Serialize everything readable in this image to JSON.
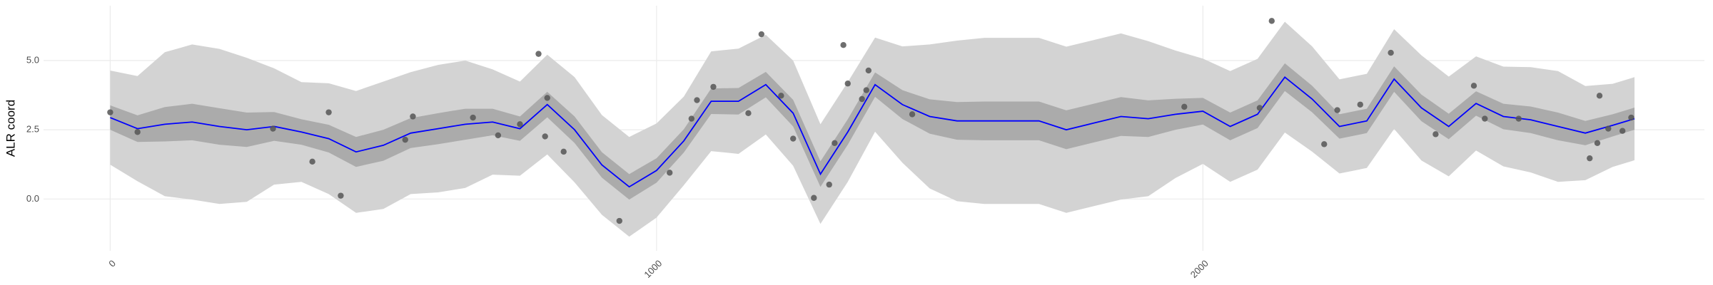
{
  "chart_data": {
    "type": "line",
    "y_label": "ALR coord",
    "xlim": [
      -122,
      2918
    ],
    "ylim": [
      -1.87,
      6.98
    ],
    "xticks": [
      0,
      1000,
      2000
    ],
    "yticks": [
      {
        "value": 0,
        "label": "0.0"
      },
      {
        "value": 2.5,
        "label": "2.5"
      },
      {
        "value": 5,
        "label": "5.0"
      }
    ],
    "grid": true,
    "x": [
      0,
      50,
      100,
      150,
      200,
      250,
      300,
      350,
      400,
      450,
      500,
      550,
      600,
      650,
      700,
      750,
      800,
      850,
      900,
      950,
      1000,
      1050,
      1100,
      1150,
      1200,
      1250,
      1300,
      1350,
      1400,
      1450,
      1500,
      1550,
      1600,
      1650,
      1700,
      1750,
      1800,
      1850,
      1900,
      1950,
      2000,
      2050,
      2100,
      2150,
      2200,
      2250,
      2300,
      2350,
      2400,
      2450,
      2500,
      2550,
      2600,
      2650,
      2700,
      2750,
      2790
    ],
    "bands": [
      {
        "color": "#d3d3d3",
        "lower": [
          1.24,
          0.64,
          0.1,
          -0.02,
          -0.18,
          -0.1,
          0.52,
          0.62,
          0.18,
          -0.5,
          -0.36,
          0.18,
          0.24,
          0.4,
          0.88,
          0.84,
          1.61,
          0.6,
          -0.57,
          -1.36,
          -0.67,
          0.5,
          1.73,
          1.63,
          2.33,
          1.2,
          -0.9,
          0.62,
          2.43,
          1.31,
          0.38,
          -0.08,
          -0.18,
          -0.18,
          -0.18,
          -0.5,
          -0.26,
          -0.02,
          0.1,
          0.76,
          1.27,
          0.62,
          1.06,
          2.4,
          1.71,
          0.92,
          1.12,
          2.53,
          1.39,
          0.82,
          1.75,
          1.18,
          0.96,
          0.62,
          0.68,
          1.16,
          1.4
        ],
        "upper": [
          4.64,
          4.44,
          5.3,
          5.58,
          5.42,
          5.1,
          4.72,
          4.22,
          4.18,
          3.9,
          4.24,
          4.58,
          4.84,
          5.0,
          4.68,
          4.24,
          5.21,
          4.4,
          3.03,
          2.24,
          2.73,
          3.7,
          5.33,
          5.43,
          5.93,
          5.0,
          2.7,
          4.22,
          5.83,
          5.51,
          5.58,
          5.72,
          5.82,
          5.82,
          5.82,
          5.5,
          5.74,
          5.98,
          5.7,
          5.36,
          5.07,
          4.62,
          5.06,
          6.4,
          5.51,
          4.32,
          4.52,
          6.13,
          5.19,
          4.42,
          5.15,
          4.78,
          4.76,
          4.62,
          4.08,
          4.16,
          4.4
        ]
      },
      {
        "color": "#ababab",
        "lower": [
          2.5,
          2.06,
          2.08,
          2.12,
          1.96,
          1.88,
          2.1,
          1.96,
          1.68,
          1.16,
          1.38,
          1.84,
          1.98,
          2.14,
          2.3,
          2.1,
          2.95,
          2.02,
          0.77,
          -0.02,
          0.59,
          1.68,
          3.07,
          3.05,
          3.67,
          2.62,
          0.44,
          1.96,
          3.69,
          2.89,
          2.36,
          2.14,
          2.12,
          2.12,
          2.12,
          1.8,
          2.04,
          2.28,
          2.24,
          2.5,
          2.69,
          2.12,
          2.56,
          3.9,
          3.13,
          2.18,
          2.38,
          3.87,
          2.81,
          2.16,
          3.01,
          2.52,
          2.38,
          2.12,
          1.94,
          2.26,
          2.5
        ],
        "upper": [
          3.38,
          3.02,
          3.32,
          3.44,
          3.28,
          3.12,
          3.14,
          2.88,
          2.68,
          2.24,
          2.5,
          2.92,
          3.1,
          3.26,
          3.26,
          2.98,
          3.87,
          2.98,
          1.69,
          0.9,
          1.47,
          2.52,
          3.99,
          4.01,
          4.59,
          3.58,
          1.36,
          2.88,
          4.57,
          3.93,
          3.6,
          3.5,
          3.52,
          3.52,
          3.52,
          3.2,
          3.44,
          3.68,
          3.56,
          3.62,
          3.65,
          3.12,
          3.56,
          4.9,
          4.09,
          3.06,
          3.26,
          4.79,
          3.77,
          3.08,
          3.89,
          3.44,
          3.34,
          3.12,
          2.82,
          3.06,
          3.3
        ]
      }
    ],
    "series": [
      {
        "color": "#0000ff",
        "values": [
          2.94,
          2.54,
          2.7,
          2.78,
          2.62,
          2.5,
          2.62,
          2.42,
          2.18,
          1.7,
          1.94,
          2.38,
          2.54,
          2.7,
          2.78,
          2.54,
          3.41,
          2.5,
          1.23,
          0.44,
          1.03,
          2.1,
          3.53,
          3.53,
          4.13,
          3.1,
          0.9,
          2.42,
          4.13,
          3.41,
          2.98,
          2.82,
          2.82,
          2.82,
          2.82,
          2.5,
          2.74,
          2.98,
          2.9,
          3.06,
          3.17,
          2.62,
          3.06,
          4.4,
          3.61,
          2.62,
          2.82,
          4.33,
          3.29,
          2.62,
          3.45,
          2.98,
          2.86,
          2.62,
          2.38,
          2.66,
          2.9
        ]
      }
    ],
    "points": {
      "color": "#555555",
      "x": [
        0,
        50,
        298,
        370,
        400,
        422,
        540,
        554,
        664,
        710,
        750,
        784,
        796,
        800,
        830,
        932,
        1024,
        1064,
        1074,
        1104,
        1168,
        1192,
        1228,
        1250,
        1288,
        1316,
        1326,
        1342,
        1350,
        1376,
        1384,
        1388,
        1468,
        1966,
        2104,
        2126,
        2222,
        2246,
        2288,
        2344,
        2426,
        2496,
        2516,
        2578,
        2708,
        2722,
        2726,
        2742,
        2768,
        2784
      ],
      "y": [
        3.13,
        2.42,
        2.54,
        1.35,
        3.13,
        0.12,
        2.14,
        2.98,
        2.94,
        2.3,
        2.7,
        5.24,
        2.26,
        3.65,
        1.71,
        -0.79,
        0.95,
        2.9,
        3.57,
        4.05,
        3.1,
        5.95,
        3.73,
        2.18,
        0.04,
        0.52,
        2.02,
        5.56,
        4.17,
        3.61,
        3.93,
        4.64,
        3.06,
        3.33,
        3.29,
        6.43,
        1.98,
        3.21,
        3.41,
        5.28,
        2.34,
        4.09,
        2.9,
        2.9,
        1.47,
        2.02,
        3.73,
        2.54,
        2.46,
        2.94
      ]
    }
  }
}
